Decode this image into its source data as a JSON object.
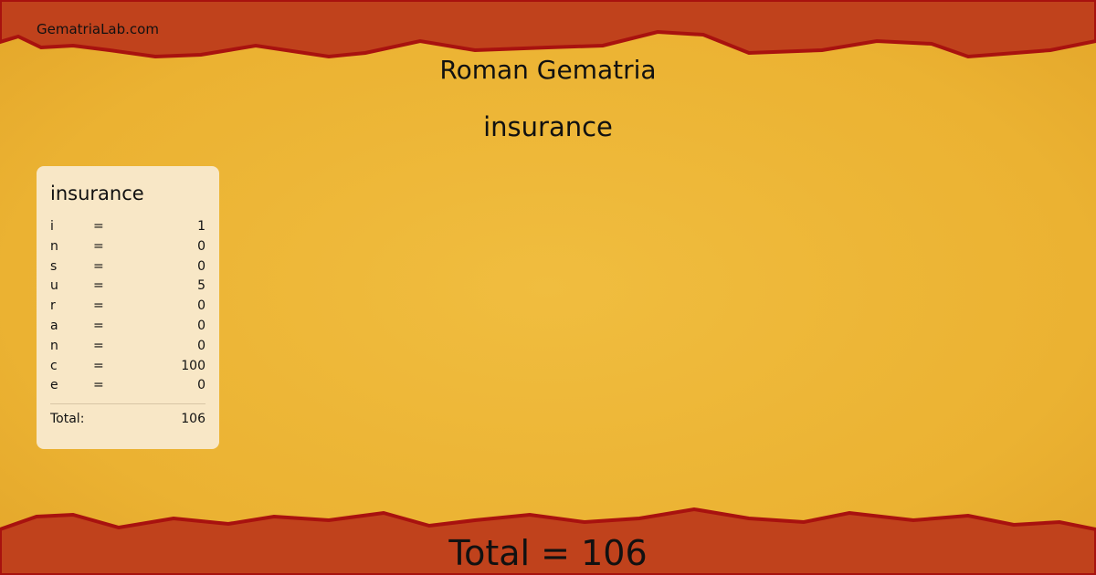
{
  "site": {
    "name": "GematriaLab.com"
  },
  "header": {
    "title": "Roman Gematria",
    "word": "insurance"
  },
  "colors": {
    "band": "#c0421c",
    "band_edge": "#a8120f",
    "paper": "#ebb232",
    "card": "#f8e7c6"
  },
  "card": {
    "title": "insurance",
    "rows": [
      {
        "letter": "i",
        "eq": "=",
        "value": "1"
      },
      {
        "letter": "n",
        "eq": "=",
        "value": "0"
      },
      {
        "letter": "s",
        "eq": "=",
        "value": "0"
      },
      {
        "letter": "u",
        "eq": "=",
        "value": "5"
      },
      {
        "letter": "r",
        "eq": "=",
        "value": "0"
      },
      {
        "letter": "a",
        "eq": "=",
        "value": "0"
      },
      {
        "letter": "n",
        "eq": "=",
        "value": "0"
      },
      {
        "letter": "c",
        "eq": "=",
        "value": "100"
      },
      {
        "letter": "e",
        "eq": "=",
        "value": "0"
      }
    ],
    "total_label": "Total:",
    "total_value": "106"
  },
  "footer": {
    "total": "Total = 106"
  }
}
